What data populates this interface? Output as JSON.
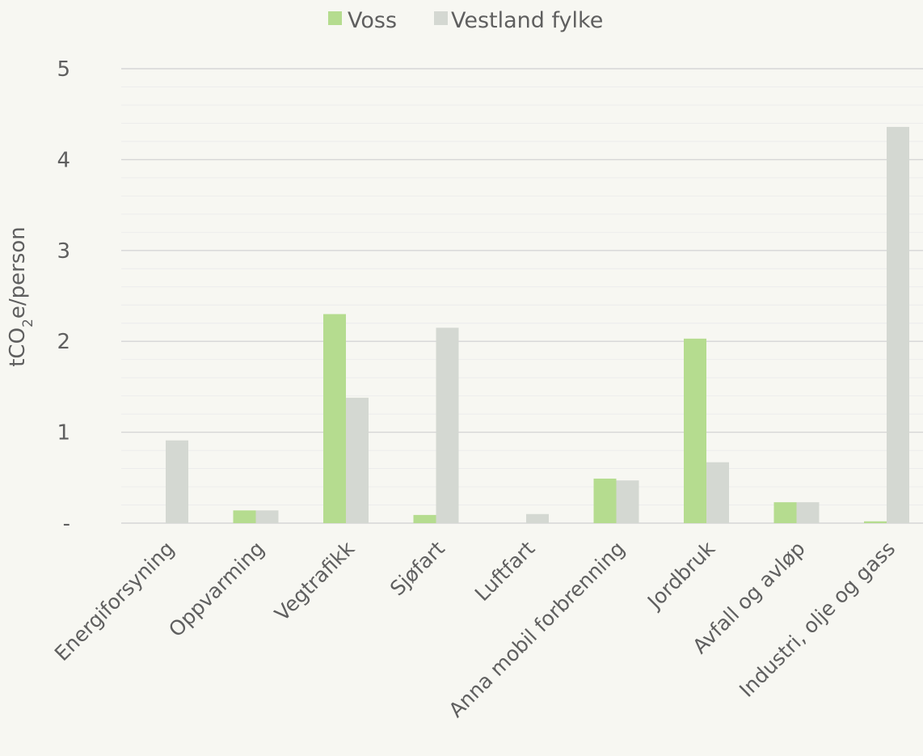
{
  "chart_data": {
    "type": "bar",
    "title": "",
    "xlabel": "",
    "ylabel_parts": {
      "pre": "tCO",
      "sub": "2",
      "post": "e/person"
    },
    "ylim": [
      0,
      5
    ],
    "yticks": [
      {
        "value": 0,
        "label": "-"
      },
      {
        "value": 1,
        "label": "1"
      },
      {
        "value": 2,
        "label": "2"
      },
      {
        "value": 3,
        "label": "3"
      },
      {
        "value": 4,
        "label": "4"
      },
      {
        "value": 5,
        "label": "5"
      }
    ],
    "grid": true,
    "legend_position": "top",
    "categories": [
      "Energiforsyning",
      "Oppvarming",
      "Vegtrafikk",
      "Sjøfart",
      "Luftfart",
      "Anna mobil forbrenning",
      "Jordbruk",
      "Avfall og avløp",
      "Industri, olje og gass"
    ],
    "series": [
      {
        "name": "Voss",
        "color": "#b5dc8f",
        "values": [
          0.0,
          0.14,
          2.3,
          0.09,
          0.0,
          0.49,
          2.03,
          0.23,
          0.02
        ]
      },
      {
        "name": "Vestland fylke",
        "color": "#d4d8d2",
        "values": [
          0.91,
          0.14,
          1.38,
          2.15,
          0.1,
          0.47,
          0.67,
          0.23,
          4.36
        ]
      }
    ]
  }
}
